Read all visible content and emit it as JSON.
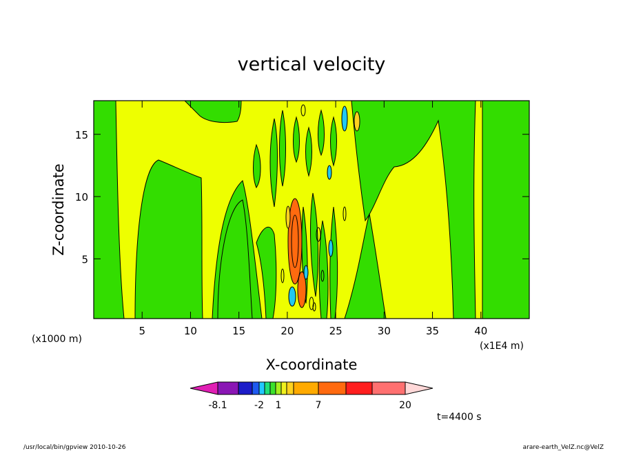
{
  "chart_data": {
    "type": "heatmap",
    "title": "vertical velocity",
    "xlabel": "X-coordinate",
    "ylabel": "Z-coordinate",
    "x_unit_left": "(x1000 m)",
    "x_unit_right": "(x1E4 m)",
    "xlim": [
      0,
      45
    ],
    "ylim": [
      0.2,
      17.7
    ],
    "x_ticks": [
      "5",
      "10",
      "15",
      "20",
      "25",
      "30",
      "35",
      "40"
    ],
    "x_tick_values": [
      5,
      10,
      15,
      20,
      25,
      30,
      35,
      40
    ],
    "y_ticks": [
      "5",
      "10",
      "15"
    ],
    "y_tick_values": [
      5,
      10,
      15
    ],
    "colorbar": {
      "labels": [
        "-8.1",
        "-2",
        "1",
        "7",
        "20"
      ],
      "colors": [
        "#e01fb4",
        "#8a16b4",
        "#1c1cc8",
        "#1f5af0",
        "#22c8ff",
        "#1fe07a",
        "#3ce22c",
        "#a6f01f",
        "#f0f01f",
        "#ffd21f",
        "#ffaa00",
        "#ff6a0f",
        "#ff1e1e",
        "#ff7070",
        "#ffb8b8",
        "#ffd8d8"
      ]
    },
    "time_label": "t=4400 s",
    "field_colors": {
      "green": "#33dd00",
      "yellow": "#eeff00",
      "cyan": "#22c8f0",
      "orange": "#ff6a0f"
    }
  },
  "footer": {
    "left": "/usr/local/bin/gpview   2010-10-26",
    "right": "arare-earth_VelZ.nc@VelZ"
  }
}
